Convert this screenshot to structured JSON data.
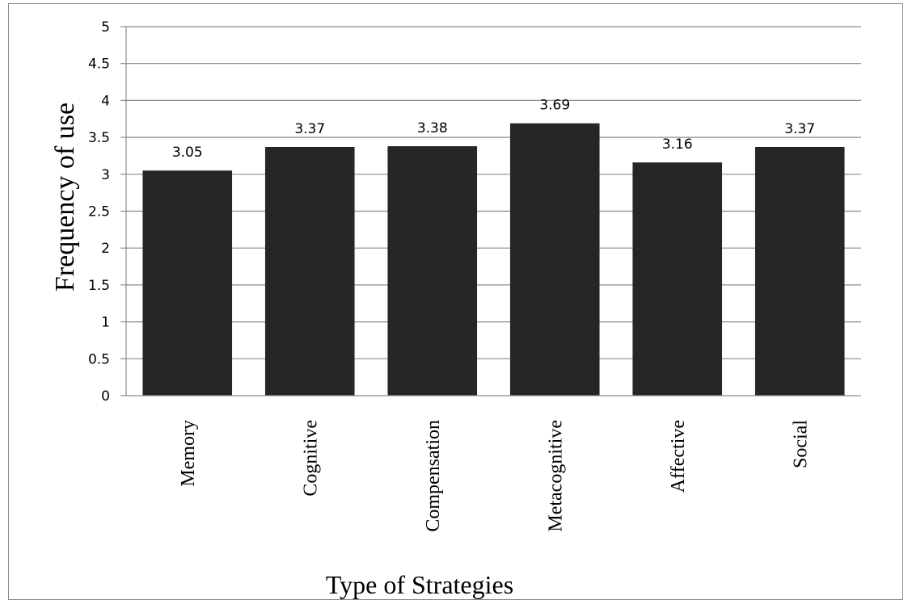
{
  "chart_data": {
    "type": "bar",
    "title": "",
    "xlabel": "Type of Strategies",
    "ylabel": "Frequency  of  use",
    "categories": [
      "Memory",
      "Cognitive",
      "Compensation",
      "Metacognitive",
      "Affective",
      "Social"
    ],
    "values": [
      3.05,
      3.37,
      3.38,
      3.69,
      3.16,
      3.37
    ],
    "data_labels": [
      "3.05",
      "3.37",
      "3.38",
      "3.69",
      "3.16",
      "3.37"
    ],
    "y_ticks": [
      "0",
      "0.5",
      "1",
      "1.5",
      "2",
      "2.5",
      "3",
      "3.5",
      "4",
      "4.5",
      "5"
    ],
    "ylim": [
      0,
      5
    ],
    "grid": true,
    "legend": "none",
    "colors": {
      "bar": "#262626",
      "grid": "#8c8c8c",
      "axis": "#8c8c8c"
    }
  }
}
